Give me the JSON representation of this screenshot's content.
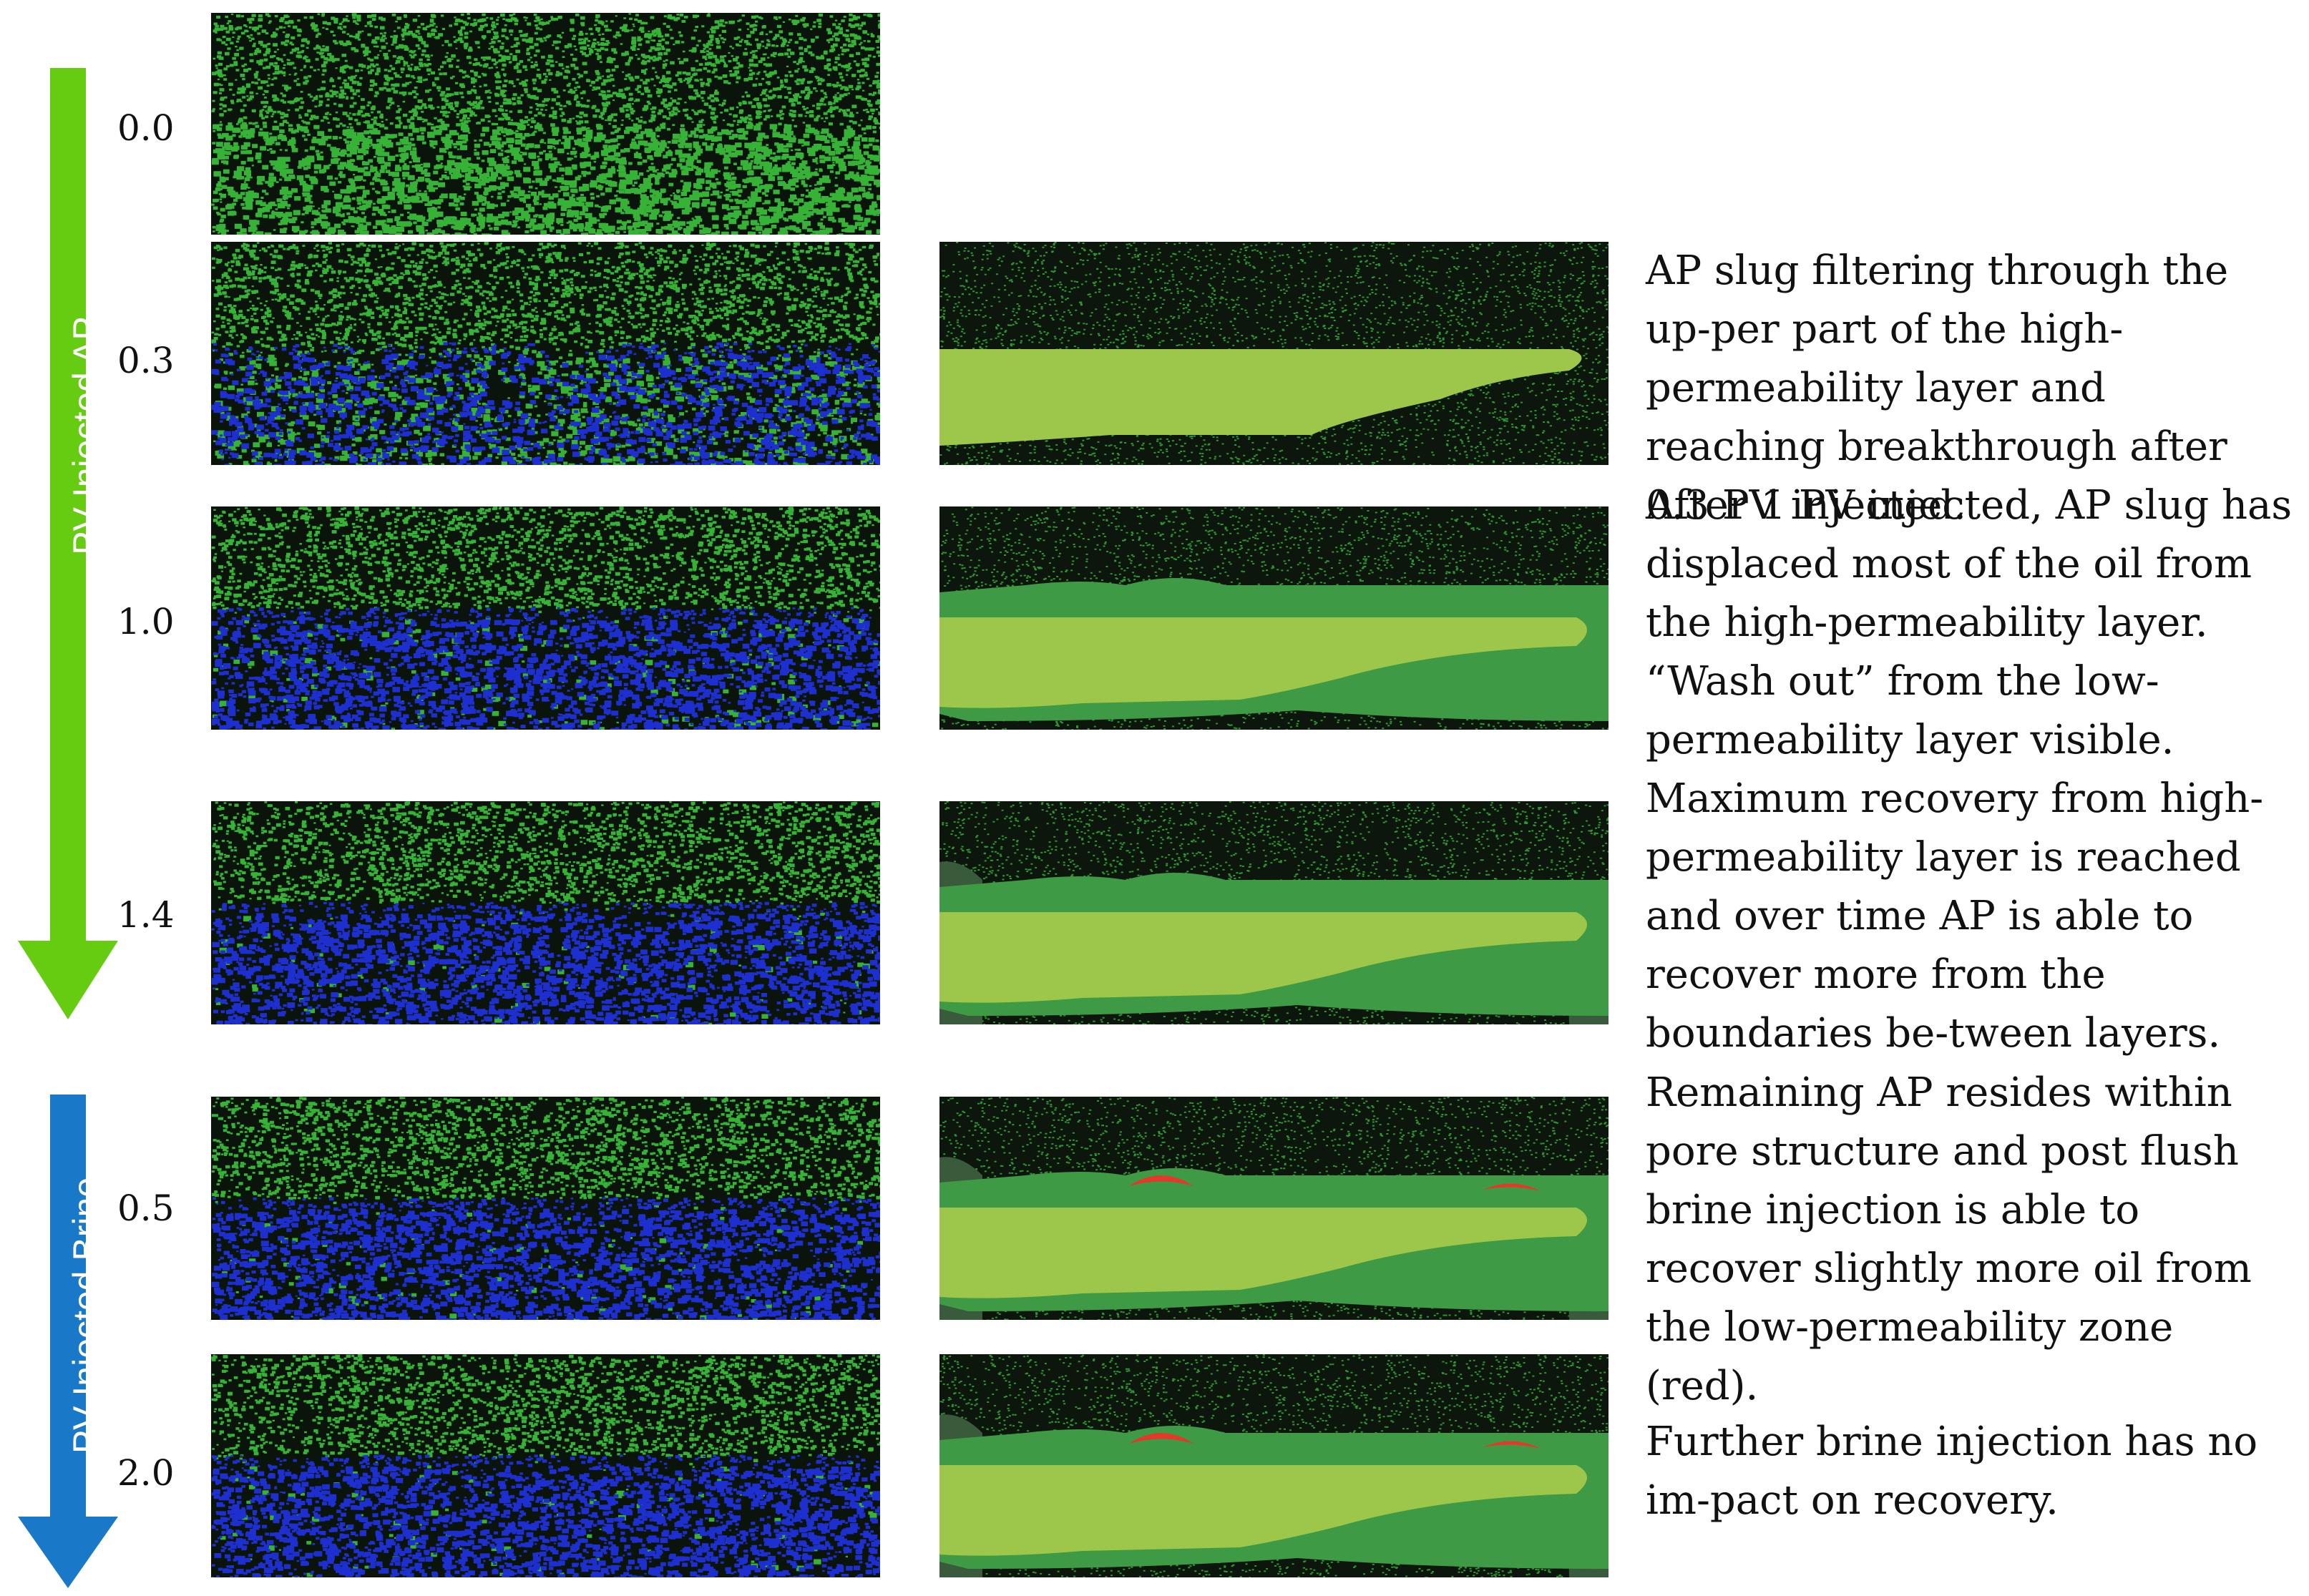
{
  "arrows": {
    "ap": {
      "label": "PV Injected AP",
      "color": "#66cc11"
    },
    "brine": {
      "label": "PV Injected Brine",
      "color": "#1a78c8"
    }
  },
  "steps": [
    {
      "pv": "0.0"
    },
    {
      "pv": "0.3"
    },
    {
      "pv": "1.0"
    },
    {
      "pv": "1.4"
    },
    {
      "pv": "0.5"
    },
    {
      "pv": "2.0"
    }
  ],
  "colors": {
    "rock_green": "#3ecf3e",
    "blue_phase": "#1e2fcf",
    "slug_light": "#9cc74a",
    "swept_mid": "#3e9a44",
    "border_dark": "#3a5a3c",
    "recovered_red": "#e23a2a"
  },
  "descriptions": [
    "AP slug filtering through the up-per part of the high-permeability layer and reaching breakthrough after 0.3 PV injected.",
    "After 1 PV injected, AP slug has displaced most of the oil from the high-permeability layer. “Wash out” from the low-permeability layer visible.",
    "Maximum recovery from high-permeability layer is reached and over time AP is able to recover more from the boundaries be-tween layers.",
    "Remaining AP resides within pore structure and post flush brine injection is able to recover slightly more oil from the low-permeability zone (red).",
    "Further brine injection has no im-pact on recovery."
  ]
}
